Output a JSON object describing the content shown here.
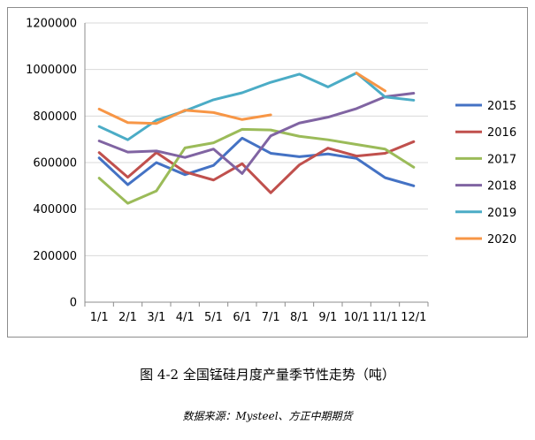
{
  "caption": "图 4-2 全国锰硅月度产量季节性走势（吨）",
  "source": "数据来源：Mysteel、方正中期期货",
  "chart_data": {
    "type": "line",
    "categories": [
      "1/1",
      "2/1",
      "3/1",
      "4/1",
      "5/1",
      "6/1",
      "7/1",
      "8/1",
      "9/1",
      "10/1",
      "11/1",
      "12/1"
    ],
    "ylim": [
      0,
      1200000
    ],
    "yticks": [
      0,
      200000,
      400000,
      600000,
      800000,
      1000000,
      1200000
    ],
    "ytick_labels": [
      "0",
      "200000",
      "400000",
      "600000",
      "800000",
      "1000000",
      "1200000"
    ],
    "grid": "horizontal",
    "legend": "right",
    "series": [
      {
        "name": "2015",
        "color": "#4472C4",
        "values": [
          620000,
          505000,
          600000,
          548000,
          588000,
          705000,
          640000,
          625000,
          637000,
          618000,
          535000,
          500000
        ]
      },
      {
        "name": "2016",
        "color": "#C0504D",
        "values": [
          643000,
          537000,
          643000,
          560000,
          525000,
          595000,
          470000,
          590000,
          662000,
          628000,
          640000,
          690000
        ]
      },
      {
        "name": "2017",
        "color": "#9BBB59",
        "values": [
          533000,
          425000,
          478000,
          663000,
          685000,
          743000,
          740000,
          713000,
          698000,
          678000,
          658000,
          580000
        ]
      },
      {
        "name": "2018",
        "color": "#8064A2",
        "values": [
          693000,
          645000,
          650000,
          622000,
          658000,
          553000,
          715000,
          770000,
          795000,
          832000,
          883000,
          898000
        ]
      },
      {
        "name": "2019",
        "color": "#4BACC6",
        "values": [
          755000,
          698000,
          782000,
          822000,
          870000,
          900000,
          945000,
          980000,
          925000,
          985000,
          882000,
          868000
        ]
      },
      {
        "name": "2020",
        "color": "#F79646",
        "values": [
          830000,
          772000,
          768000,
          825000,
          815000,
          785000,
          805000,
          null,
          null,
          985000,
          908000,
          null
        ]
      }
    ]
  }
}
